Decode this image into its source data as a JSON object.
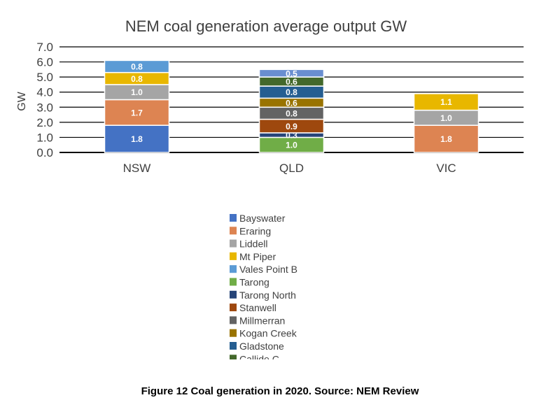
{
  "chart_data": {
    "type": "bar",
    "stacked": true,
    "title": "NEM coal generation average output GW",
    "ylabel": "GW",
    "xlabel": "",
    "ylim": [
      0,
      7
    ],
    "yticks": [
      "0.0",
      "1.0",
      "2.0",
      "3.0",
      "4.0",
      "5.0",
      "6.0",
      "7.0"
    ],
    "categories": [
      "NSW",
      "QLD",
      "VIC"
    ],
    "grid": true,
    "legend_position": "bottom",
    "series": [
      {
        "name": "Bayswater",
        "color": "#4472c4",
        "values": [
          1.8,
          null,
          null
        ]
      },
      {
        "name": "Eraring",
        "color": "#dd8452",
        "values": [
          1.7,
          null,
          1.8
        ]
      },
      {
        "name": "Liddell",
        "color": "#a5a5a5",
        "values": [
          1.0,
          null,
          1.0
        ]
      },
      {
        "name": "Mt Piper",
        "color": "#e8b700",
        "values": [
          0.8,
          null,
          1.1
        ]
      },
      {
        "name": "Vales Point B",
        "color": "#5b9bd5",
        "values": [
          0.8,
          null,
          null
        ]
      },
      {
        "name": "Tarong",
        "color": "#70ad47",
        "values": [
          null,
          1.0,
          null
        ]
      },
      {
        "name": "Tarong North",
        "color": "#264478",
        "values": [
          null,
          0.3,
          null
        ]
      },
      {
        "name": "Stanwell",
        "color": "#9e480e",
        "values": [
          null,
          0.9,
          null
        ]
      },
      {
        "name": "Millmerran",
        "color": "#636363",
        "values": [
          null,
          0.8,
          null
        ]
      },
      {
        "name": "Kogan Creek",
        "color": "#997300",
        "values": [
          null,
          0.6,
          null
        ]
      },
      {
        "name": "Gladstone",
        "color": "#255e91",
        "values": [
          null,
          0.8,
          null
        ]
      },
      {
        "name": "Callide C",
        "color": "#43682b",
        "values": [
          null,
          0.6,
          null
        ]
      },
      {
        "name": "",
        "color": "#698ed0",
        "values": [
          null,
          0.5,
          null
        ]
      }
    ],
    "data_labels": [
      [
        "1.8",
        "1.7",
        "1.0",
        "0.8",
        "0.8"
      ],
      [
        "1.0",
        "0.3",
        "0.9",
        "0.8",
        "0.6",
        "0.8",
        "0.6",
        "0.5"
      ],
      [
        "1.8",
        "1.0",
        "1.1"
      ]
    ]
  },
  "caption": "Figure 12 Coal generation in 2020. Source: NEM Review"
}
